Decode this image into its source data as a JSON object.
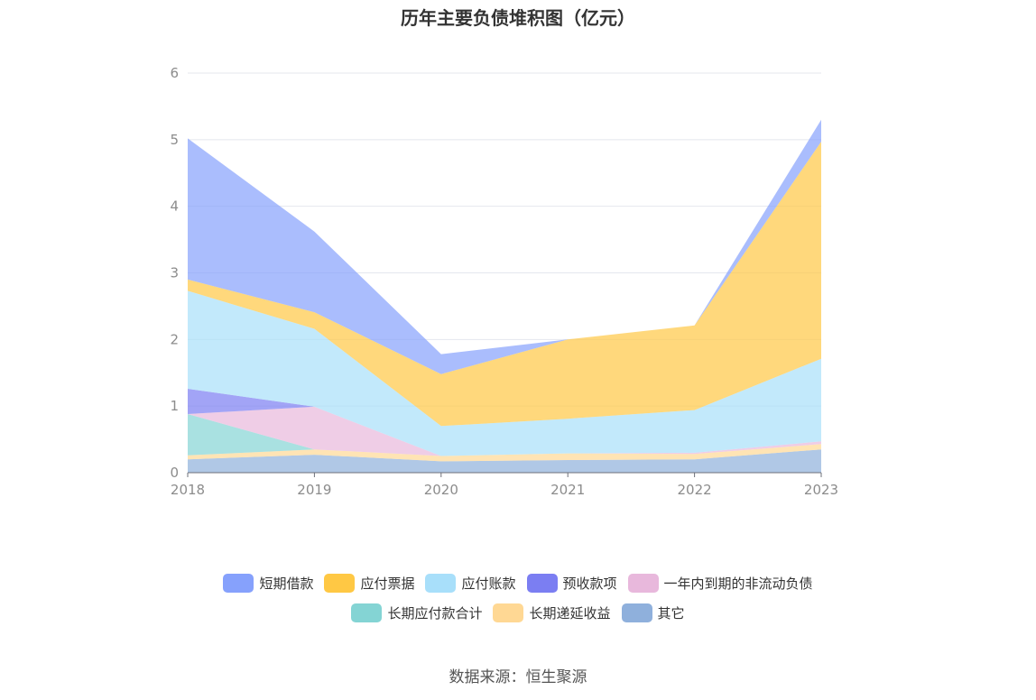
{
  "chart_data": {
    "type": "area",
    "stacked": true,
    "title": "历年主要负债堆积图（亿元）",
    "x": [
      "2018",
      "2019",
      "2020",
      "2021",
      "2022",
      "2023"
    ],
    "ylim": [
      0,
      6
    ],
    "yticks": [
      "0",
      "1",
      "2",
      "3",
      "4",
      "5",
      "6"
    ],
    "grid": true,
    "legend_position": "bottom",
    "series": [
      {
        "name": "其它",
        "color": "#8fb0dc",
        "values": [
          0.2,
          0.27,
          0.17,
          0.19,
          0.2,
          0.35
        ]
      },
      {
        "name": "长期递延收益",
        "color": "#ffd894",
        "values": [
          0.06,
          0.08,
          0.08,
          0.1,
          0.08,
          0.08
        ]
      },
      {
        "name": "长期应付款合计",
        "color": "#84d4d4",
        "values": [
          0.62,
          0,
          0,
          0,
          0,
          0
        ]
      },
      {
        "name": "一年内到期的非流动负债",
        "color": "#e8b8dc",
        "values": [
          0,
          0.64,
          0,
          0,
          0.02,
          0.04
        ]
      },
      {
        "name": "预收款项",
        "color": "#7b7ef2",
        "values": [
          0.38,
          0,
          0,
          0,
          0,
          0
        ]
      },
      {
        "name": "应付账款",
        "color": "#a8dffa",
        "values": [
          1.47,
          1.17,
          0.45,
          0.52,
          0.64,
          1.24
        ]
      },
      {
        "name": "应付票据",
        "color": "#ffc844",
        "values": [
          0.17,
          0.25,
          0.78,
          1.19,
          1.27,
          3.26
        ]
      },
      {
        "name": "短期借款",
        "color": "#86a1fc",
        "values": [
          2.12,
          1.21,
          0.3,
          0,
          0,
          0.33
        ]
      }
    ]
  },
  "legend": {
    "rows": [
      [
        {
          "label": "短期借款",
          "color": "#86a1fc"
        },
        {
          "label": "应付票据",
          "color": "#ffc844"
        },
        {
          "label": "应付账款",
          "color": "#a8dffa"
        },
        {
          "label": "预收款项",
          "color": "#7b7ef2"
        },
        {
          "label": "一年内到期的非流动负债",
          "color": "#e8b8dc"
        }
      ],
      [
        {
          "label": "长期应付款合计",
          "color": "#84d4d4"
        },
        {
          "label": "长期递延收益",
          "color": "#ffd894"
        },
        {
          "label": "其它",
          "color": "#8fb0dc"
        }
      ]
    ]
  },
  "source": "数据来源：恒生聚源"
}
